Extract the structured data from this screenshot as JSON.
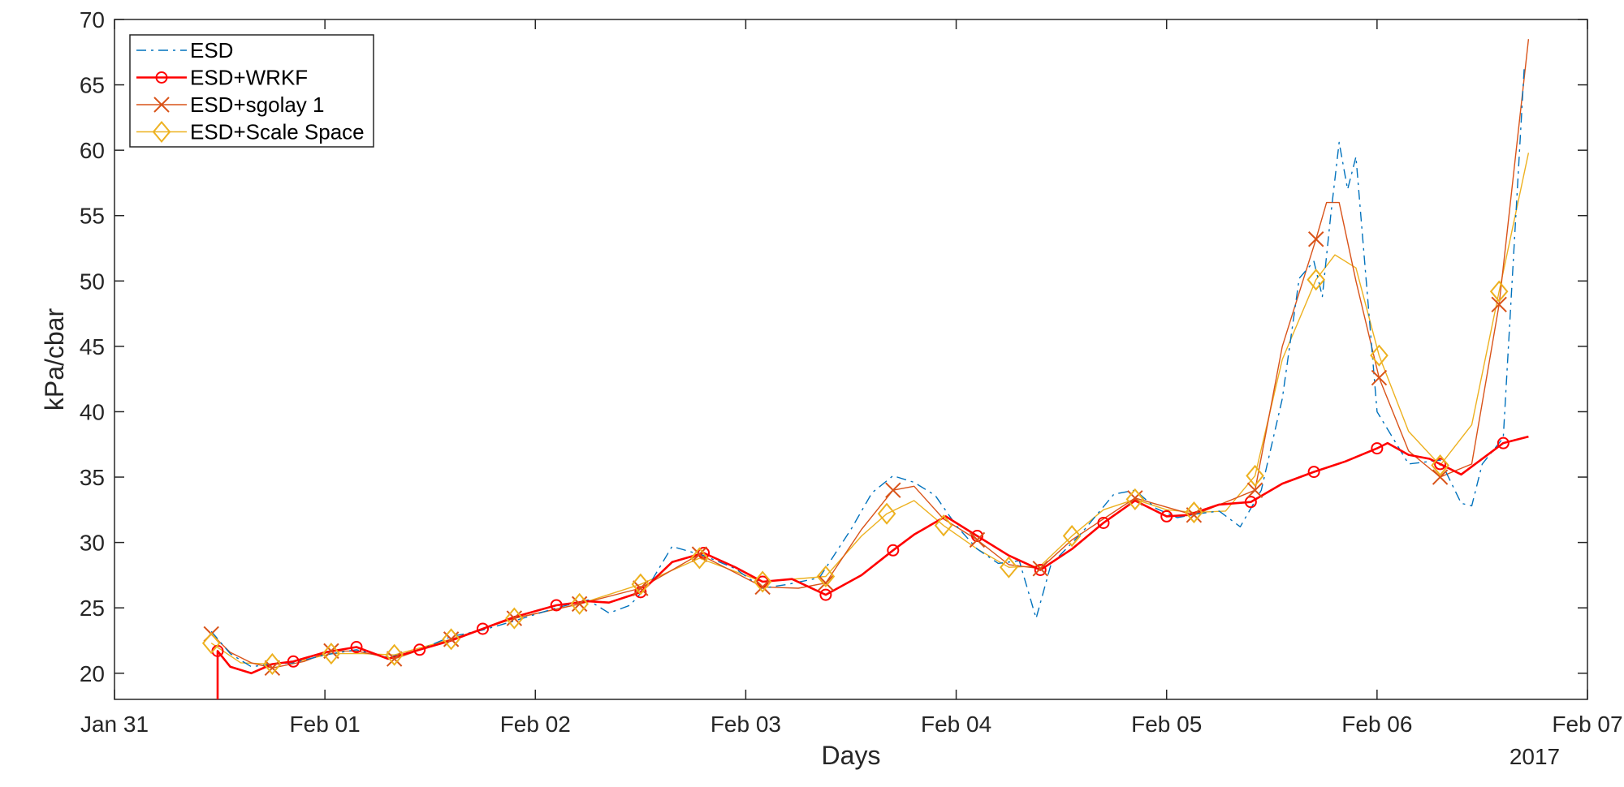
{
  "chart_data": {
    "type": "line",
    "xlabel": "Days",
    "ylabel": "kPa/cbar",
    "x_axis": {
      "ticks": [
        "Jan 31",
        "Feb 01",
        "Feb 02",
        "Feb 03",
        "Feb 04",
        "Feb 05",
        "Feb 06",
        "Feb 07"
      ],
      "range_days": [
        0,
        7
      ],
      "secondary_label": "2017"
    },
    "y_axis": {
      "ticks": [
        20,
        25,
        30,
        35,
        40,
        45,
        50,
        55,
        60,
        65,
        70
      ],
      "range": [
        18,
        70
      ]
    },
    "grid": false,
    "legend_position": "top-left",
    "series": [
      {
        "name": "ESD",
        "color": "#0072BD",
        "style": "dash-dot",
        "marker": "none",
        "x": [
          0.46,
          0.55,
          0.65,
          0.75,
          0.85,
          1.0,
          1.15,
          1.3,
          1.45,
          1.6,
          1.75,
          1.9,
          2.1,
          2.25,
          2.35,
          2.45,
          2.55,
          2.65,
          2.8,
          2.95,
          3.08,
          3.2,
          3.35,
          3.5,
          3.6,
          3.7,
          3.8,
          3.9,
          4.0,
          4.1,
          4.2,
          4.3,
          4.38,
          4.45,
          4.6,
          4.75,
          4.85,
          4.95,
          5.05,
          5.15,
          5.25,
          5.35,
          5.45,
          5.55,
          5.63,
          5.7,
          5.74,
          5.78,
          5.82,
          5.86,
          5.9,
          6.0,
          6.15,
          6.3,
          6.4,
          6.45,
          6.5,
          6.6,
          6.7
        ],
        "y": [
          23.2,
          21.5,
          20.5,
          20.7,
          20.8,
          21.4,
          21.8,
          21.2,
          21.8,
          22.8,
          23.3,
          24.0,
          25.0,
          25.6,
          24.6,
          25.2,
          27.0,
          29.7,
          29.0,
          28.0,
          26.5,
          26.8,
          27.3,
          31.0,
          33.8,
          35.1,
          34.6,
          33.6,
          31.3,
          29.5,
          28.4,
          28.6,
          24.2,
          28.3,
          30.8,
          33.7,
          34.0,
          32.6,
          31.9,
          32.2,
          32.4,
          31.2,
          34.0,
          41.0,
          50.2,
          51.5,
          48.8,
          55.0,
          60.6,
          57.0,
          59.5,
          40.0,
          36.0,
          36.3,
          33.0,
          32.8,
          36.0,
          38.0,
          66.5
        ]
      },
      {
        "name": "ESD+WRKF",
        "color": "#FF0000",
        "style": "solid",
        "marker": "circle",
        "x": [
          0.49,
          0.49,
          0.55,
          0.65,
          0.75,
          0.85,
          1.0,
          1.15,
          1.3,
          1.45,
          1.6,
          1.75,
          1.9,
          2.1,
          2.25,
          2.35,
          2.5,
          2.65,
          2.8,
          2.95,
          3.08,
          3.22,
          3.38,
          3.55,
          3.7,
          3.8,
          3.95,
          4.1,
          4.25,
          4.4,
          4.55,
          4.7,
          4.85,
          5.0,
          5.1,
          5.25,
          5.4,
          5.55,
          5.7,
          5.85,
          6.0,
          6.05,
          6.15,
          6.25,
          6.3,
          6.4,
          6.55,
          6.6,
          6.72
        ],
        "y": [
          18.0,
          21.7,
          20.5,
          20.0,
          20.7,
          20.9,
          21.6,
          22.0,
          21.1,
          21.8,
          22.5,
          23.4,
          24.3,
          25.2,
          25.5,
          25.4,
          26.2,
          28.5,
          29.2,
          28.1,
          27.0,
          27.2,
          26.0,
          27.5,
          29.4,
          30.6,
          32.0,
          30.5,
          29.0,
          27.9,
          29.5,
          31.5,
          33.2,
          32.0,
          32.1,
          32.9,
          33.1,
          34.5,
          35.4,
          36.2,
          37.2,
          37.6,
          36.7,
          36.4,
          36.0,
          35.2,
          37.0,
          37.6,
          38.1
        ]
      },
      {
        "name": "ESD+sgolay 1",
        "color": "#D95319",
        "style": "solid",
        "marker": "x",
        "x": [
          0.46,
          0.55,
          0.65,
          0.75,
          0.9,
          1.03,
          1.15,
          1.33,
          1.6,
          1.9,
          2.21,
          2.5,
          2.78,
          3.08,
          3.25,
          3.38,
          3.55,
          3.7,
          3.8,
          3.94,
          4.1,
          4.25,
          4.4,
          4.55,
          4.85,
          5.13,
          5.42,
          5.55,
          5.71,
          5.76,
          5.82,
          5.9,
          6.01,
          6.15,
          6.3,
          6.45,
          6.58,
          6.72
        ],
        "y": [
          23.0,
          21.6,
          20.8,
          20.4,
          20.9,
          21.7,
          21.7,
          21.1,
          22.6,
          24.2,
          25.3,
          26.5,
          29.1,
          26.6,
          26.5,
          26.9,
          31.0,
          34.0,
          34.3,
          31.8,
          30.2,
          28.3,
          28.0,
          30.2,
          33.4,
          32.1,
          34.0,
          45.0,
          53.2,
          56.0,
          56.0,
          50.0,
          42.6,
          37.0,
          35.0,
          36.0,
          48.2,
          68.5
        ]
      },
      {
        "name": "ESD+Scale Space",
        "color": "#EDB120",
        "style": "solid",
        "marker": "diamond",
        "x": [
          0.46,
          0.6,
          0.75,
          0.9,
          1.03,
          1.18,
          1.33,
          1.6,
          1.9,
          2.21,
          2.5,
          2.78,
          3.08,
          3.38,
          3.55,
          3.67,
          3.8,
          3.94,
          4.1,
          4.25,
          4.4,
          4.55,
          4.7,
          4.85,
          5.0,
          5.13,
          5.28,
          5.42,
          5.55,
          5.71,
          5.8,
          5.9,
          6.01,
          6.15,
          6.3,
          6.45,
          6.58,
          6.72
        ],
        "y": [
          22.3,
          20.8,
          20.7,
          21.0,
          21.5,
          21.5,
          21.4,
          22.6,
          24.2,
          25.3,
          26.8,
          28.8,
          27.0,
          27.4,
          30.5,
          32.2,
          33.2,
          31.3,
          29.5,
          28.1,
          28.2,
          30.5,
          32.5,
          33.3,
          32.5,
          32.3,
          32.4,
          35.1,
          44.0,
          50.1,
          52.0,
          51.0,
          44.3,
          38.5,
          35.9,
          39.0,
          49.2,
          59.8
        ]
      }
    ]
  }
}
